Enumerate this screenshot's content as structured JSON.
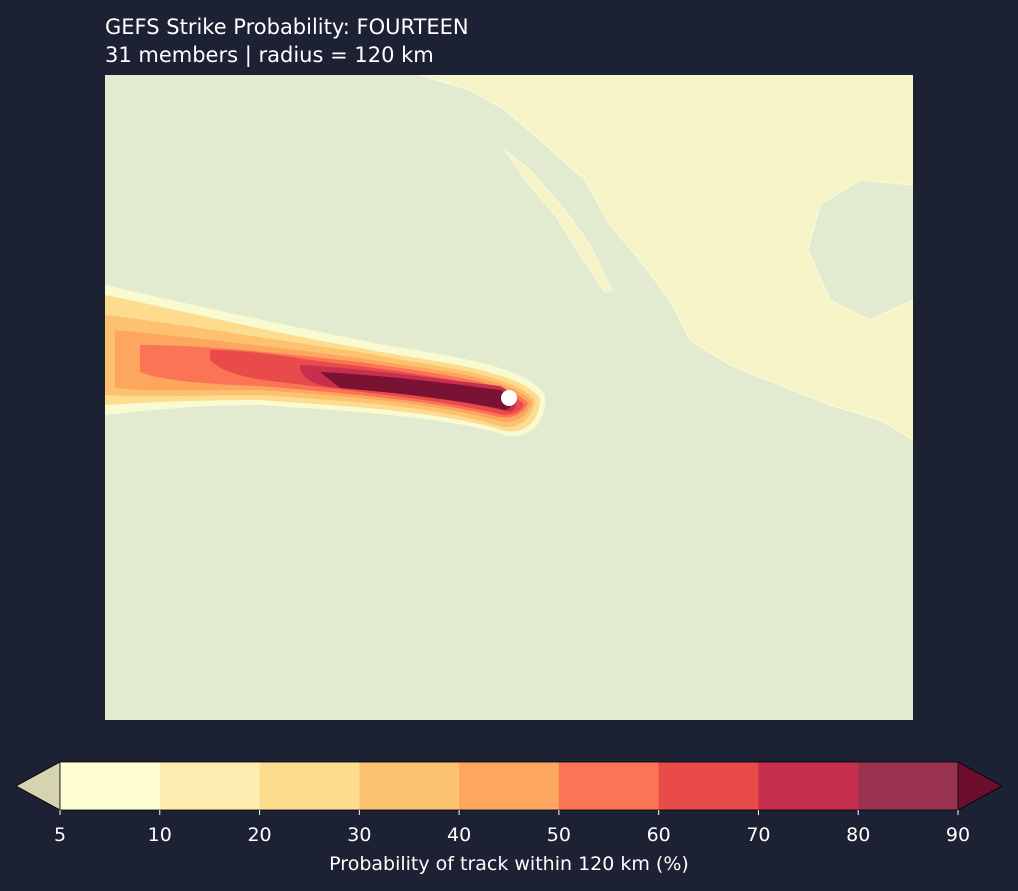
{
  "header": {
    "title": "GEFS Strike Probability: FOURTEEN",
    "subtitle": "31 members  |  radius = 120 km"
  },
  "colorbar": {
    "label": "Probability of track within 120 km (%)",
    "ticks": [
      5,
      10,
      20,
      30,
      40,
      50,
      60,
      70,
      80,
      90
    ],
    "colors": [
      "#fefed0",
      "#fdedb0",
      "#fddc90",
      "#fdc26f",
      "#fca660",
      "#fa7455",
      "#e84b4a",
      "#c72f4f",
      "#993350"
    ],
    "under_color": "#d6d3b0",
    "over_color": "#6c0d2e"
  }
}
